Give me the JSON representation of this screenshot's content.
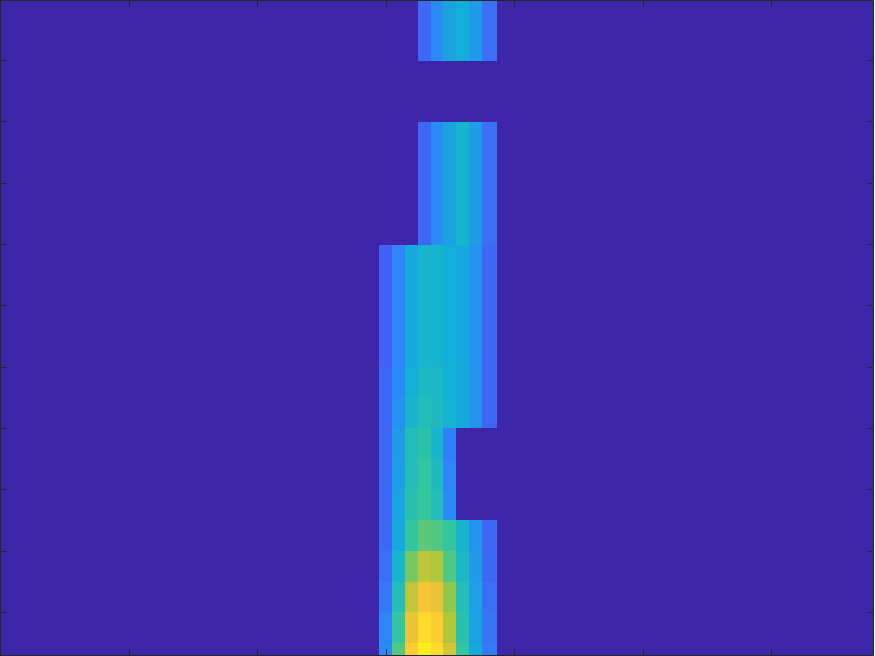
{
  "chart_data": {
    "type": "heatmap",
    "xlim": [
      0,
      6.8
    ],
    "ylim": [
      0.28,
      10.98
    ],
    "xticks": [
      1,
      2,
      3,
      4,
      5,
      6
    ],
    "yticks": [
      1,
      2,
      3,
      4,
      5,
      6,
      7,
      8,
      9,
      10
    ],
    "tick_labels": false,
    "clim": [
      0,
      1
    ],
    "x_edges": [
      0,
      2.95,
      3.05,
      3.15,
      3.25,
      3.35,
      3.45,
      3.55,
      3.65,
      3.75,
      3.87,
      6.8
    ],
    "y_edges": [
      0.28,
      0.5,
      1,
      1.5,
      2,
      2.5,
      3,
      3.5,
      4,
      4.5,
      5,
      5.5,
      6,
      6.5,
      7,
      7.5,
      8,
      8.5,
      9,
      9.5,
      10,
      10.5,
      10.98
    ],
    "z": [
      [
        0,
        0.3,
        0.6,
        0.88,
        0.97,
        0.92,
        0.78,
        0.55,
        0.4,
        0.25,
        0
      ],
      [
        0,
        0.28,
        0.55,
        0.82,
        0.92,
        0.88,
        0.72,
        0.52,
        0.38,
        0.24,
        0
      ],
      [
        0,
        0.25,
        0.5,
        0.75,
        0.85,
        0.82,
        0.68,
        0.5,
        0.37,
        0.22,
        0
      ],
      [
        0,
        0.22,
        0.45,
        0.65,
        0.75,
        0.72,
        0.6,
        0.47,
        0.35,
        0.2,
        0
      ],
      [
        0,
        0.2,
        0.4,
        0.55,
        0.62,
        0.6,
        0.55,
        0.45,
        0.33,
        0.2,
        0
      ],
      [
        0,
        0.2,
        0.38,
        0.52,
        0.56,
        0.5,
        0.3,
        0,
        0,
        0,
        0
      ],
      [
        0,
        0.2,
        0.36,
        0.5,
        0.55,
        0.48,
        0.28,
        0,
        0,
        0,
        0
      ],
      [
        0,
        0.2,
        0.35,
        0.5,
        0.53,
        0.45,
        0.27,
        0,
        0,
        0,
        0
      ],
      [
        0,
        0.2,
        0.32,
        0.45,
        0.5,
        0.48,
        0.44,
        0.4,
        0.32,
        0.2,
        0
      ],
      [
        0,
        0.2,
        0.3,
        0.42,
        0.48,
        0.47,
        0.43,
        0.4,
        0.32,
        0.2,
        0
      ],
      [
        0,
        0.18,
        0.28,
        0.4,
        0.45,
        0.45,
        0.42,
        0.4,
        0.32,
        0.2,
        0
      ],
      [
        0,
        0.18,
        0.28,
        0.4,
        0.45,
        0.45,
        0.42,
        0.4,
        0.32,
        0.2,
        0
      ],
      [
        0,
        0.18,
        0.28,
        0.4,
        0.45,
        0.45,
        0.42,
        0.4,
        0.32,
        0.2,
        0
      ],
      [
        0,
        0.18,
        0.28,
        0.4,
        0.45,
        0.45,
        0.42,
        0.4,
        0.32,
        0.2,
        0
      ],
      [
        0,
        0,
        0,
        0,
        0.2,
        0.3,
        0.38,
        0.45,
        0.35,
        0.22,
        0
      ],
      [
        0,
        0,
        0,
        0,
        0.2,
        0.3,
        0.38,
        0.45,
        0.35,
        0.22,
        0
      ],
      [
        0,
        0,
        0,
        0,
        0.2,
        0.3,
        0.38,
        0.45,
        0.35,
        0.22,
        0
      ],
      [
        0,
        0,
        0,
        0,
        0.2,
        0.3,
        0.38,
        0.45,
        0.35,
        0.22,
        0
      ],
      [
        0,
        0,
        0,
        0,
        0,
        0,
        0,
        0,
        0,
        0,
        0
      ],
      [
        0,
        0,
        0,
        0,
        0,
        0,
        0,
        0,
        0,
        0,
        0
      ],
      [
        0,
        0,
        0,
        0,
        0.2,
        0.3,
        0.38,
        0.42,
        0.35,
        0.22,
        0
      ],
      [
        0,
        0,
        0,
        0,
        0.2,
        0.3,
        0.38,
        0.42,
        0.35,
        0.22,
        0
      ]
    ]
  }
}
